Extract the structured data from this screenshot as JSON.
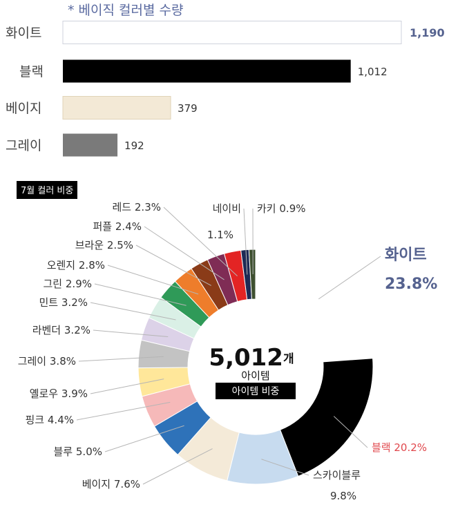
{
  "chart_data": [
    {
      "type": "bar",
      "orientation": "horizontal",
      "title": "* 베이직 컬러별 수량",
      "categories": [
        "화이트",
        "블랙",
        "베이지",
        "그레이"
      ],
      "values": [
        1190,
        1012,
        379,
        192
      ],
      "value_labels": [
        "1,190",
        "1,012",
        "379",
        "192"
      ],
      "colors": [
        "#ffffff",
        "#000000",
        "#f3e9d6",
        "#7a7a7a"
      ],
      "xlim": [
        0,
        1190
      ]
    },
    {
      "type": "pie",
      "title": "7월 컬러 비중",
      "center_value": "5,012",
      "center_unit": "개",
      "center_subtitle": "아이템",
      "center_badge": "아이템 비중",
      "slices": [
        {
          "label": "화이트",
          "value": 23.8,
          "pct": "23.8%",
          "color": "#ffffff"
        },
        {
          "label": "블랙",
          "value": 20.2,
          "pct": "20.2%",
          "color": "#000000"
        },
        {
          "label": "스카이블루",
          "value": 9.8,
          "pct": "9.8%",
          "color": "#c7dbef"
        },
        {
          "label": "베이지",
          "value": 7.6,
          "pct": "7.6%",
          "color": "#f4ead8"
        },
        {
          "label": "블루",
          "value": 5.0,
          "pct": "5.0%",
          "color": "#2e72b9"
        },
        {
          "label": "핑크",
          "value": 4.4,
          "pct": "4.4%",
          "color": "#f6b9b9"
        },
        {
          "label": "옐로우",
          "value": 3.9,
          "pct": "3.9%",
          "color": "#ffe79a"
        },
        {
          "label": "그레이",
          "value": 3.8,
          "pct": "3.8%",
          "color": "#c3c3c3"
        },
        {
          "label": "라벤더",
          "value": 3.2,
          "pct": "3.2%",
          "color": "#dcd2e8"
        },
        {
          "label": "민트",
          "value": 3.2,
          "pct": "3.2%",
          "color": "#daf0e6"
        },
        {
          "label": "그린",
          "value": 2.9,
          "pct": "2.9%",
          "color": "#2f9a58"
        },
        {
          "label": "오렌지",
          "value": 2.8,
          "pct": "2.8%",
          "color": "#ee7d2b"
        },
        {
          "label": "브라운",
          "value": 2.5,
          "pct": "2.5%",
          "color": "#8a3b18"
        },
        {
          "label": "퍼플",
          "value": 2.4,
          "pct": "2.4%",
          "color": "#7f2c55"
        },
        {
          "label": "레드",
          "value": 2.3,
          "pct": "2.3%",
          "color": "#e32424"
        },
        {
          "label": "네이비",
          "value": 1.1,
          "pct": "1.1%",
          "color": "#1d2a55"
        },
        {
          "label": "카키",
          "value": 0.9,
          "pct": "0.9%",
          "color": "#3e5030"
        }
      ]
    }
  ]
}
